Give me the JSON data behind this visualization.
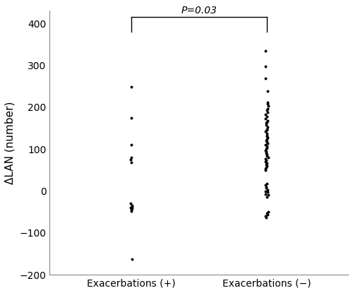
{
  "group1_label": "Exacerbations (+)",
  "group2_label": "Exacerbations (−)",
  "ylabel": "ΔLAN (number)",
  "pvalue_text": "P=0.03",
  "ylim": [
    -200,
    430
  ],
  "yticks": [
    -200,
    -100,
    0,
    100,
    200,
    300,
    400
  ],
  "group1_x": 1,
  "group2_x": 2,
  "xlim": [
    0.4,
    2.6
  ],
  "bracket_top_y": 415,
  "bracket_drop_y": 380,
  "group1_points": [
    248,
    175,
    110,
    80,
    75,
    68,
    -30,
    -35,
    -38,
    -40,
    -42,
    -45,
    -48,
    -163
  ],
  "group2_points": [
    335,
    298,
    268,
    238,
    212,
    208,
    203,
    197,
    193,
    188,
    183,
    178,
    172,
    168,
    165,
    162,
    158,
    153,
    148,
    145,
    142,
    138,
    133,
    130,
    127,
    124,
    120,
    117,
    113,
    110,
    107,
    104,
    100,
    97,
    94,
    90,
    87,
    84,
    80,
    77,
    73,
    70,
    67,
    63,
    60,
    57,
    53,
    50,
    18,
    14,
    10,
    7,
    3,
    0,
    -3,
    -7,
    -10,
    -14,
    -50,
    -53,
    -57,
    -60,
    -63
  ],
  "dot_color": "#000000",
  "dot_size": 8,
  "background_color": "#ffffff",
  "spine_color": "#888888",
  "tick_labelsize": 10,
  "ylabel_fontsize": 11,
  "xlabel_fontsize": 10,
  "pvalue_fontsize": 10
}
